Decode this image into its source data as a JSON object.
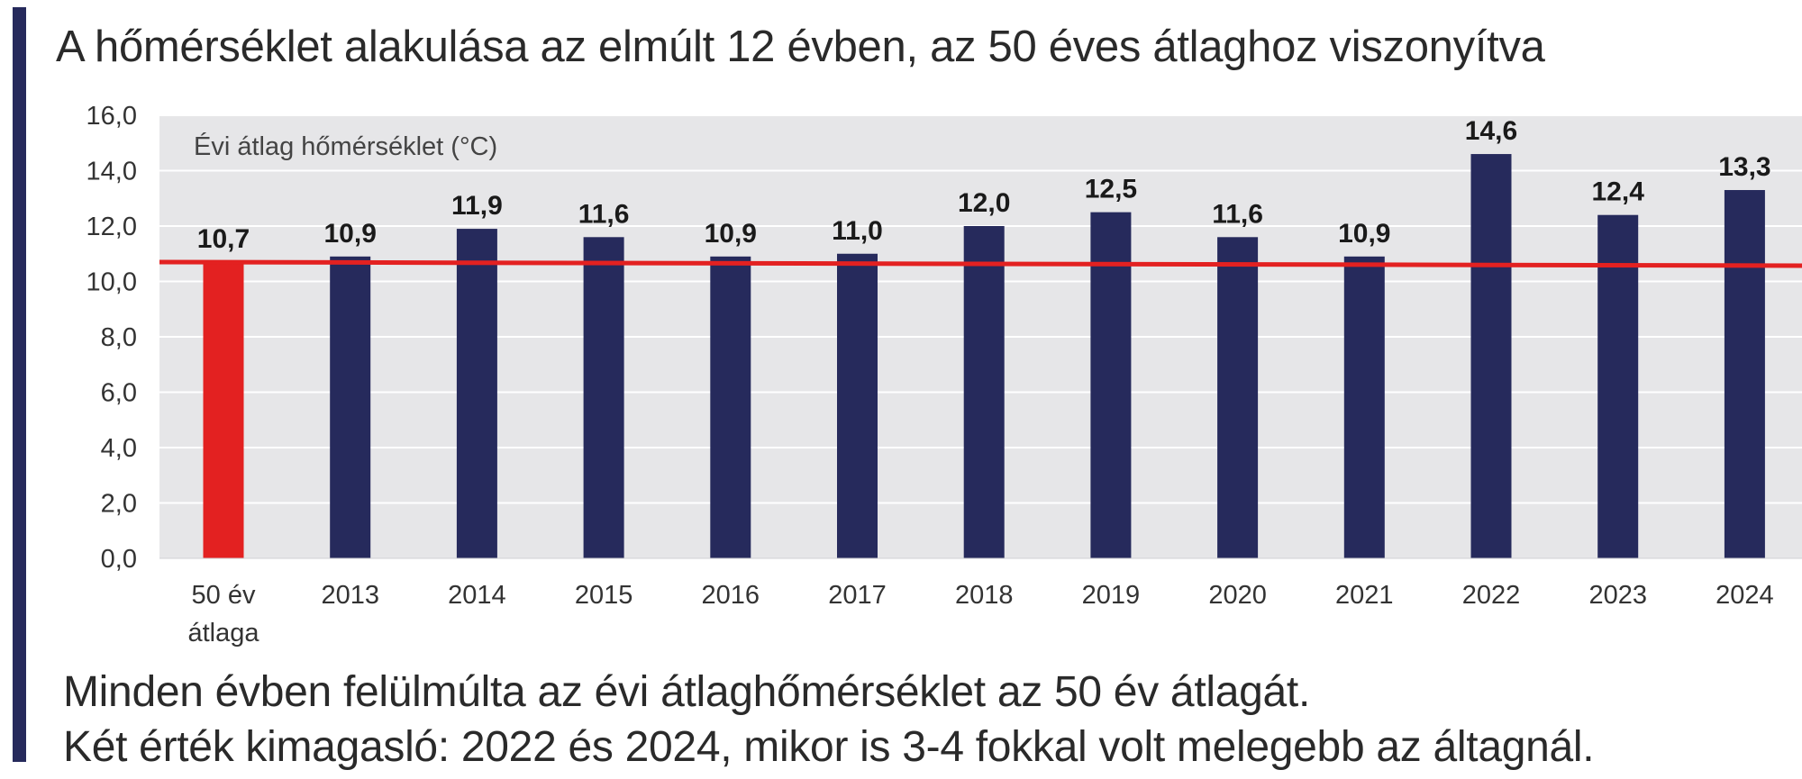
{
  "title": "A hőmérséklet alakulása az elmúlt 12 évben, az 50 éves átlaghoz viszonyítva",
  "footnotes": [
    "Minden évben felülmúlta az évi átlaghőmérséklet az 50 év átlagát.",
    "Két érték kimagasló: 2022 és 2024, mikor is 3-4 fokkal volt melegebb az áltagnál."
  ],
  "colors": {
    "accent": "#262a5c",
    "bar": "#262a5c",
    "baseline_bar": "#e32121",
    "reference_line": "#e32121",
    "plot_background": "#e6e6e8",
    "gridline": "#ffffff"
  },
  "chart_data": {
    "type": "bar",
    "title": "A hőmérséklet alakulása az elmúlt 12 évben, az 50 éves átlaghoz viszonyítva",
    "inner_label": "Évi átlag hőmérséklet (°C)",
    "xlabel": "",
    "ylabel": "",
    "categories": [
      [
        "50 év",
        "átlaga"
      ],
      [
        "2013"
      ],
      [
        "2014"
      ],
      [
        "2015"
      ],
      [
        "2016"
      ],
      [
        "2017"
      ],
      [
        "2018"
      ],
      [
        "2019"
      ],
      [
        "2020"
      ],
      [
        "2021"
      ],
      [
        "2022"
      ],
      [
        "2023"
      ],
      [
        "2024"
      ]
    ],
    "values": [
      10.7,
      10.9,
      11.9,
      11.6,
      10.9,
      11.0,
      12.0,
      12.5,
      11.6,
      10.9,
      14.6,
      12.4,
      13.3
    ],
    "value_labels": [
      "10,7",
      "10,9",
      "11,9",
      "11,6",
      "10,9",
      "11,0",
      "12,0",
      "12,5",
      "11,6",
      "10,9",
      "14,6",
      "12,4",
      "13,3"
    ],
    "highlighted_index": 0,
    "reference_line": {
      "value": 10.7
    },
    "ylim": [
      0,
      16
    ],
    "yticks": [
      0,
      2,
      4,
      6,
      8,
      10,
      12,
      14,
      16
    ],
    "ytick_labels": [
      "0,0",
      "2,0",
      "4,0",
      "6,0",
      "8,0",
      "10,0",
      "12,0",
      "14,0",
      "16,0"
    ],
    "grid": true,
    "legend": "none"
  }
}
